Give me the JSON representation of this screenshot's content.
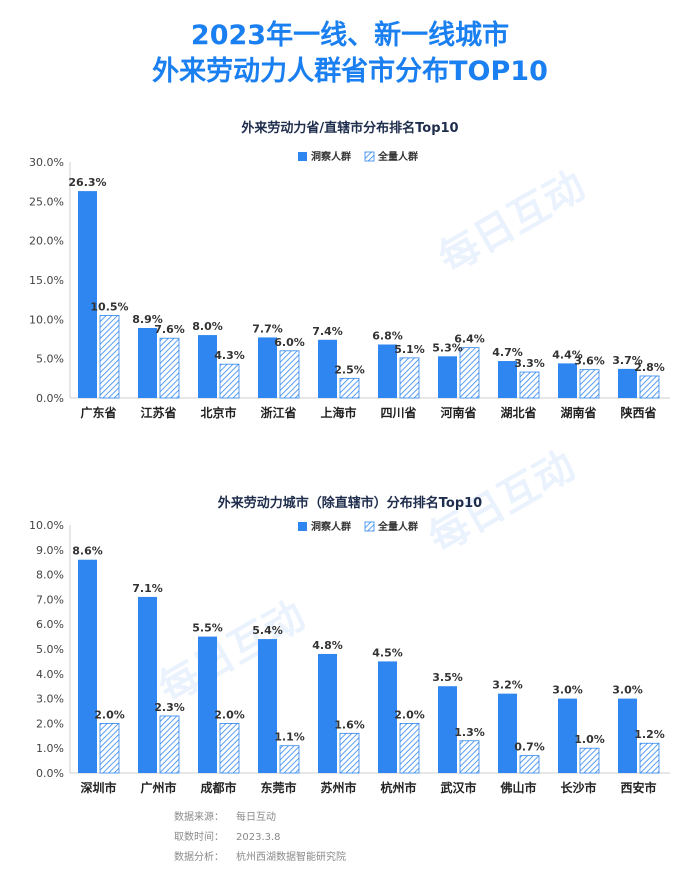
{
  "title_line1": "2023年一线、新一线城市",
  "title_line2": "外来劳动力人群省市分布TOP10",
  "watermark": "每日互动",
  "colors": {
    "title": "#1a7ff0",
    "observed": "#2f86f0",
    "all": "#2f86f0"
  },
  "chart_data": [
    {
      "type": "bar",
      "title": "外来劳动力省/直辖市分布排名Top10",
      "legend": "top-right",
      "categories": [
        "广东省",
        "江苏省",
        "北京市",
        "浙江省",
        "上海市",
        "四川省",
        "河南省",
        "湖北省",
        "湖南省",
        "陕西省"
      ],
      "ylim": [
        0,
        30
      ],
      "yticks": [
        "0.0%",
        "5.0%",
        "10.0%",
        "15.0%",
        "20.0%",
        "25.0%",
        "30.0%"
      ],
      "series": [
        {
          "name": "洞察人群",
          "values": [
            26.3,
            8.9,
            8.0,
            7.7,
            7.4,
            6.8,
            5.3,
            4.7,
            4.4,
            3.7
          ],
          "labels": [
            "26.3%",
            "8.9%",
            "8.0%",
            "7.7%",
            "7.4%",
            "6.8%",
            "5.3%",
            "4.7%",
            "4.4%",
            "3.7%"
          ]
        },
        {
          "name": "全量人群",
          "values": [
            10.5,
            7.6,
            4.3,
            6.0,
            2.5,
            5.1,
            6.4,
            3.3,
            3.6,
            2.8
          ],
          "labels": [
            "10.5%",
            "7.6%",
            "4.3%",
            "6.0%",
            "2.5%",
            "5.1%",
            "6.4%",
            "3.3%",
            "3.6%",
            "2.8%"
          ]
        }
      ]
    },
    {
      "type": "bar",
      "title": "外来劳动力城市（除直辖市）分布排名Top10",
      "legend": "top-right",
      "categories": [
        "深圳市",
        "广州市",
        "成都市",
        "东莞市",
        "苏州市",
        "杭州市",
        "武汉市",
        "佛山市",
        "长沙市",
        "西安市"
      ],
      "ylim": [
        0,
        10
      ],
      "yticks": [
        "0.0%",
        "1.0%",
        "2.0%",
        "3.0%",
        "4.0%",
        "5.0%",
        "6.0%",
        "7.0%",
        "8.0%",
        "9.0%",
        "10.0%"
      ],
      "series": [
        {
          "name": "洞察人群",
          "values": [
            8.6,
            7.1,
            5.5,
            5.4,
            4.8,
            4.5,
            3.5,
            3.2,
            3.0,
            3.0
          ],
          "labels": [
            "8.6%",
            "7.1%",
            "5.5%",
            "5.4%",
            "4.8%",
            "4.5%",
            "3.5%",
            "3.2%",
            "3.0%",
            "3.0%"
          ]
        },
        {
          "name": "全量人群",
          "values": [
            2.0,
            2.3,
            2.0,
            1.1,
            1.6,
            2.0,
            1.3,
            0.7,
            1.0,
            1.2
          ],
          "labels": [
            "2.0%",
            "2.3%",
            "2.0%",
            "1.1%",
            "1.6%",
            "2.0%",
            "1.3%",
            "0.7%",
            "1.0%",
            "1.2%"
          ]
        }
      ]
    }
  ],
  "footer": {
    "source_label": "数据来源：",
    "source_value": "每日互动",
    "time_label": "取数时间：",
    "time_value": "2023.3.8",
    "analysis_label": "数据分析：",
    "analysis_value": "杭州西湖数据智能研究院"
  }
}
